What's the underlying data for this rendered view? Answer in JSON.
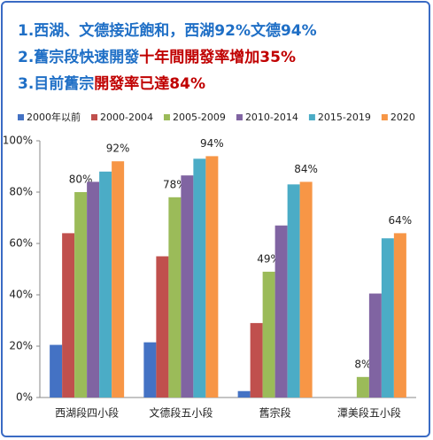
{
  "chart_data": {
    "type": "bar",
    "annotations": [
      [
        {
          "text": "1.西湖、文德接近飽和，西湖92%文德94%",
          "color": "#1f6fc6"
        }
      ],
      [
        {
          "text": "2.舊宗段快速開發",
          "color": "#1f6fc6"
        },
        {
          "text": "十年間開發率增加35%",
          "color": "#c00000"
        }
      ],
      [
        {
          "text": "3.目前舊宗",
          "color": "#1f6fc6"
        },
        {
          "text": "開發率已達84%",
          "color": "#c00000"
        }
      ]
    ],
    "categories": [
      "西湖段四小段",
      "文德段五小段",
      "舊宗段",
      "潭美段五小段"
    ],
    "series": [
      {
        "name": "2000年以前",
        "color": "#4472c4",
        "values": [
          20.5,
          21.5,
          2.5,
          null
        ]
      },
      {
        "name": "2000-2004",
        "color": "#c0504d",
        "values": [
          64,
          55,
          29,
          null
        ]
      },
      {
        "name": "2005-2009",
        "color": "#9bbb59",
        "values": [
          80,
          78,
          49,
          8
        ],
        "value_labels": [
          "80%",
          "78%",
          "49%",
          "8%"
        ]
      },
      {
        "name": "2010-2014",
        "color": "#8064a2",
        "values": [
          84,
          86.5,
          67,
          40.5
        ]
      },
      {
        "name": "2015-2019",
        "color": "#4bacc6",
        "values": [
          88,
          93,
          83,
          62
        ]
      },
      {
        "name": "2020",
        "color": "#f79646",
        "values": [
          92,
          94,
          84,
          64
        ],
        "value_labels": [
          "92%",
          "94%",
          "84%",
          "64%"
        ]
      }
    ],
    "ylim": [
      0,
      100
    ],
    "yticks": [
      {
        "value": 0,
        "label": "0%"
      },
      {
        "value": 20,
        "label": "20%"
      },
      {
        "value": 40,
        "label": "40%"
      },
      {
        "value": 60,
        "label": "60%"
      },
      {
        "value": 80,
        "label": "80%"
      },
      {
        "value": 100,
        "label": "100%"
      }
    ],
    "grid": false,
    "legend": "top"
  }
}
